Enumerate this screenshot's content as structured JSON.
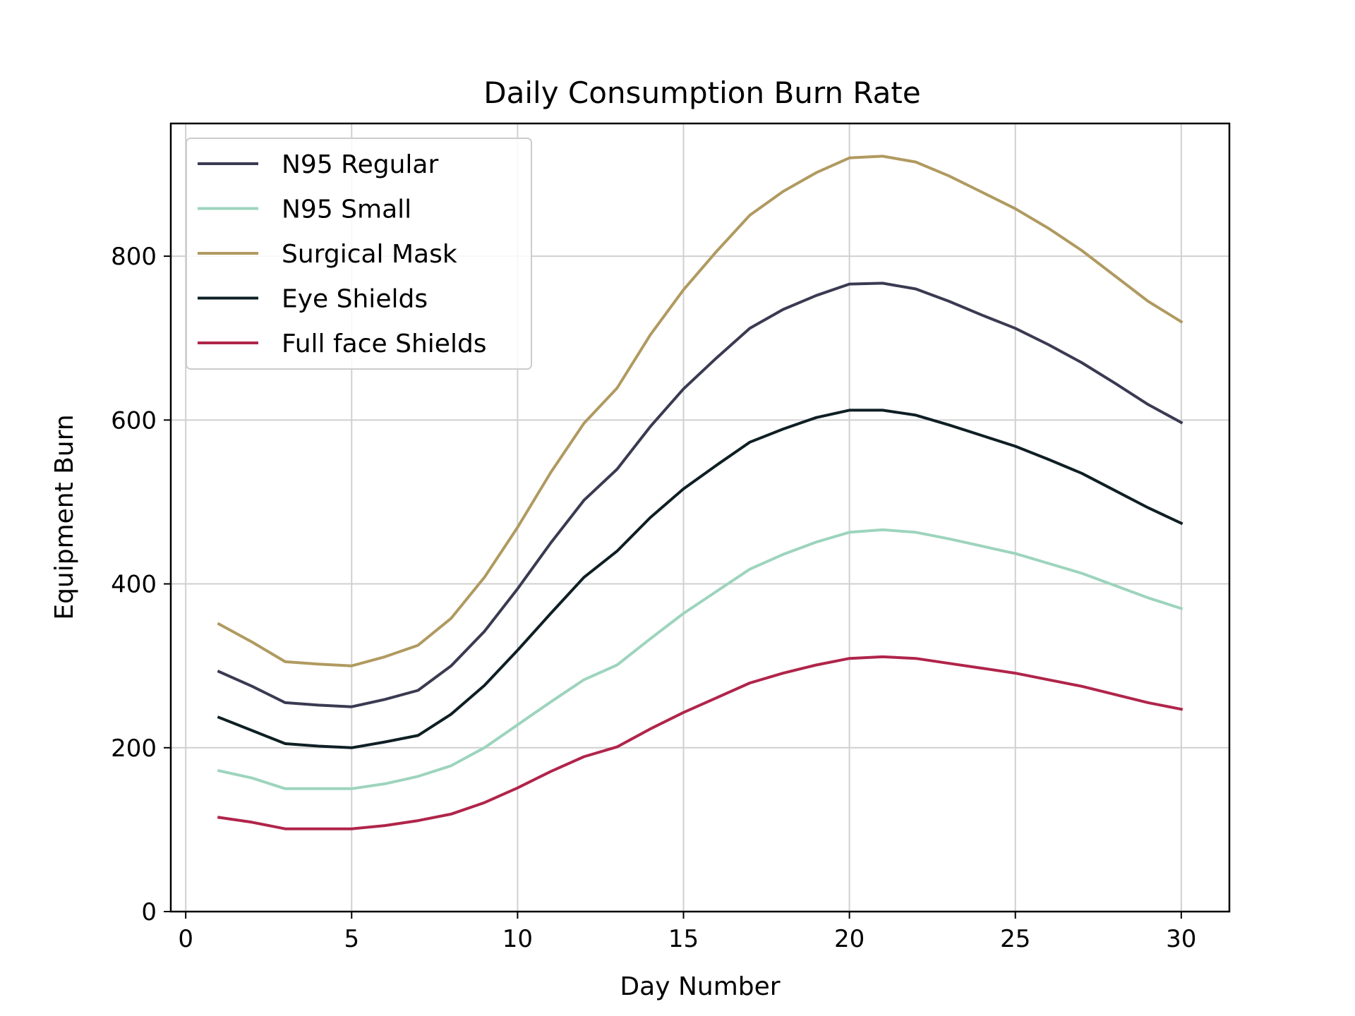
{
  "chart_data": {
    "type": "line",
    "title": "Daily Consumption Burn Rate",
    "xlabel": "Day Number",
    "ylabel": "Equipment Burn",
    "xlim": [
      -0.45,
      31.45
    ],
    "ylim": [
      0,
      962
    ],
    "xticks": [
      0,
      5,
      10,
      15,
      20,
      25,
      30
    ],
    "yticks": [
      0,
      200,
      400,
      600,
      800
    ],
    "grid": true,
    "legend_position": "upper left",
    "x": [
      1,
      2,
      3,
      4,
      5,
      6,
      7,
      8,
      9,
      10,
      11,
      12,
      13,
      14,
      15,
      16,
      17,
      18,
      19,
      20,
      21,
      22,
      23,
      24,
      25,
      26,
      27,
      28,
      29,
      30
    ],
    "series": [
      {
        "name": "N95 Regular",
        "color": "#3a3a52",
        "values": [
          293,
          275,
          255,
          252,
          250,
          259,
          270,
          300,
          342,
          394,
          450,
          502,
          540,
          592,
          638,
          676,
          712,
          735,
          752,
          766,
          767,
          760,
          745,
          728,
          712,
          692,
          670,
          645,
          619,
          597
        ]
      },
      {
        "name": "N95 Small",
        "color": "#9dd4bd",
        "values": [
          172,
          163,
          150,
          150,
          150,
          156,
          165,
          178,
          200,
          228,
          256,
          283,
          301,
          333,
          364,
          391,
          418,
          436,
          451,
          463,
          466,
          463,
          455,
          446,
          437,
          425,
          413,
          398,
          383,
          370
        ]
      },
      {
        "name": "Surgical Mask",
        "color": "#b09a60",
        "values": [
          351,
          329,
          305,
          302,
          300,
          311,
          325,
          358,
          408,
          469,
          536,
          596,
          639,
          704,
          759,
          806,
          850,
          879,
          902,
          920,
          922,
          915,
          898,
          878,
          858,
          834,
          807,
          776,
          745,
          720
        ]
      },
      {
        "name": "Eye Shields",
        "color": "#0e1f24",
        "values": [
          237,
          221,
          205,
          202,
          200,
          207,
          215,
          241,
          276,
          319,
          364,
          408,
          440,
          481,
          516,
          545,
          573,
          589,
          603,
          612,
          612,
          606,
          594,
          581,
          568,
          552,
          535,
          514,
          493,
          474
        ]
      },
      {
        "name": "Full face Shields",
        "color": "#b0244a",
        "values": [
          115,
          109,
          101,
          101,
          101,
          105,
          111,
          119,
          133,
          151,
          171,
          189,
          201,
          223,
          243,
          261,
          279,
          291,
          301,
          309,
          311,
          309,
          303,
          297,
          291,
          283,
          275,
          265,
          255,
          247
        ]
      }
    ]
  }
}
